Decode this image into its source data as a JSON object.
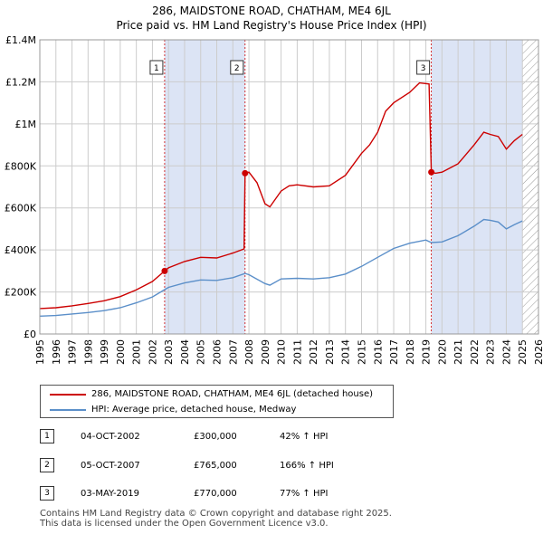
{
  "title_line1": "286, MAIDSTONE ROAD, CHATHAM, ME4 6JL",
  "title_line2": "Price paid vs. HM Land Registry's House Price Index (HPI)",
  "legend": {
    "property_label": "286, MAIDSTONE ROAD, CHATHAM, ME4 6JL (detached house)",
    "hpi_label": "HPI: Average price, detached house, Medway"
  },
  "colors": {
    "property": "#cc0000",
    "hpi": "#5b8fc9",
    "shade": "#dce4f5",
    "grid": "#cccccc"
  },
  "sales": [
    {
      "num": "1",
      "date": "04-OCT-2002",
      "price": "£300,000",
      "hpi_change": "42% ↑ HPI",
      "year": 2002.76,
      "value": 300000
    },
    {
      "num": "2",
      "date": "05-OCT-2007",
      "price": "£765,000",
      "hpi_change": "166% ↑ HPI",
      "year": 2007.76,
      "value": 765000
    },
    {
      "num": "3",
      "date": "03-MAY-2019",
      "price": "£770,000",
      "hpi_change": "77% ↑ HPI",
      "year": 2019.34,
      "value": 770000
    }
  ],
  "footer": {
    "line1": "Contains HM Land Registry data © Crown copyright and database right 2025.",
    "line2": "This data is licensed under the Open Government Licence v3.0."
  },
  "chart_data": {
    "type": "line",
    "title": "286, MAIDSTONE ROAD, CHATHAM, ME4 6JL — Price paid vs. HM Land Registry's House Price Index (HPI)",
    "xlabel": "",
    "ylabel": "",
    "xlim": [
      1995,
      2026
    ],
    "ylim": [
      0,
      1400000
    ],
    "x_ticks": [
      "1995",
      "1996",
      "1997",
      "1998",
      "1999",
      "2000",
      "2001",
      "2002",
      "2003",
      "2004",
      "2005",
      "2006",
      "2007",
      "2008",
      "2009",
      "2010",
      "2011",
      "2012",
      "2013",
      "2014",
      "2015",
      "2016",
      "2017",
      "2018",
      "2019",
      "2020",
      "2021",
      "2022",
      "2023",
      "2024",
      "2025",
      "2026"
    ],
    "y_ticks": [
      {
        "value": 0,
        "label": "£0"
      },
      {
        "value": 200000,
        "label": "£200K"
      },
      {
        "value": 400000,
        "label": "£400K"
      },
      {
        "value": 600000,
        "label": "£600K"
      },
      {
        "value": 800000,
        "label": "£800K"
      },
      {
        "value": 1000000,
        "label": "£1M"
      },
      {
        "value": 1200000,
        "label": "£1.2M"
      },
      {
        "value": 1400000,
        "label": "£1.4M"
      }
    ],
    "shaded_ranges": [
      [
        2002.76,
        2007.76
      ],
      [
        2019.34,
        2025.0
      ]
    ],
    "hatch_from": 2025.0,
    "series": [
      {
        "name": "286, MAIDSTONE ROAD, CHATHAM, ME4 6JL (detached house)",
        "color": "#cc0000",
        "points": [
          [
            1995,
            121000
          ],
          [
            1996,
            125000
          ],
          [
            1997,
            134000
          ],
          [
            1998,
            145000
          ],
          [
            1999,
            158000
          ],
          [
            2000,
            178000
          ],
          [
            2001,
            210000
          ],
          [
            2002,
            250000
          ],
          [
            2002.76,
            300000
          ],
          [
            2003,
            315000
          ],
          [
            2004,
            345000
          ],
          [
            2005,
            365000
          ],
          [
            2006,
            362000
          ],
          [
            2007,
            385000
          ],
          [
            2007.7,
            405000
          ],
          [
            2007.76,
            765000
          ],
          [
            2008,
            770000
          ],
          [
            2008.5,
            720000
          ],
          [
            2009,
            620000
          ],
          [
            2009.3,
            605000
          ],
          [
            2010,
            680000
          ],
          [
            2010.5,
            705000
          ],
          [
            2011,
            710000
          ],
          [
            2012,
            700000
          ],
          [
            2013,
            705000
          ],
          [
            2014,
            755000
          ],
          [
            2015,
            860000
          ],
          [
            2015.5,
            900000
          ],
          [
            2016,
            960000
          ],
          [
            2016.5,
            1060000
          ],
          [
            2017,
            1100000
          ],
          [
            2018,
            1150000
          ],
          [
            2018.6,
            1195000
          ],
          [
            2019.2,
            1190000
          ],
          [
            2019.34,
            770000
          ],
          [
            2019.6,
            765000
          ],
          [
            2020,
            770000
          ],
          [
            2020.5,
            790000
          ],
          [
            2021,
            810000
          ],
          [
            2022,
            900000
          ],
          [
            2022.6,
            960000
          ],
          [
            2023,
            950000
          ],
          [
            2023.5,
            940000
          ],
          [
            2024,
            880000
          ],
          [
            2024.5,
            920000
          ],
          [
            2025,
            950000
          ]
        ]
      },
      {
        "name": "HPI: Average price, detached house, Medway",
        "color": "#5b8fc9",
        "points": [
          [
            1995,
            85000
          ],
          [
            1996,
            88000
          ],
          [
            1997,
            95000
          ],
          [
            1998,
            102000
          ],
          [
            1999,
            111000
          ],
          [
            2000,
            125000
          ],
          [
            2001,
            148000
          ],
          [
            2002,
            176000
          ],
          [
            2002.76,
            211000
          ],
          [
            2003,
            222000
          ],
          [
            2004,
            243000
          ],
          [
            2005,
            257000
          ],
          [
            2006,
            255000
          ],
          [
            2007,
            268000
          ],
          [
            2007.76,
            288000
          ],
          [
            2008,
            282000
          ],
          [
            2009,
            240000
          ],
          [
            2009.3,
            232000
          ],
          [
            2010,
            262000
          ],
          [
            2011,
            265000
          ],
          [
            2012,
            262000
          ],
          [
            2013,
            268000
          ],
          [
            2014,
            285000
          ],
          [
            2015,
            322000
          ],
          [
            2016,
            365000
          ],
          [
            2017,
            407000
          ],
          [
            2018,
            432000
          ],
          [
            2019,
            447000
          ],
          [
            2019.34,
            435000
          ],
          [
            2020,
            438000
          ],
          [
            2021,
            468000
          ],
          [
            2022,
            513000
          ],
          [
            2022.6,
            545000
          ],
          [
            2023,
            541000
          ],
          [
            2023.5,
            533000
          ],
          [
            2024,
            500000
          ],
          [
            2024.5,
            520000
          ],
          [
            2025,
            538000
          ]
        ]
      }
    ]
  }
}
